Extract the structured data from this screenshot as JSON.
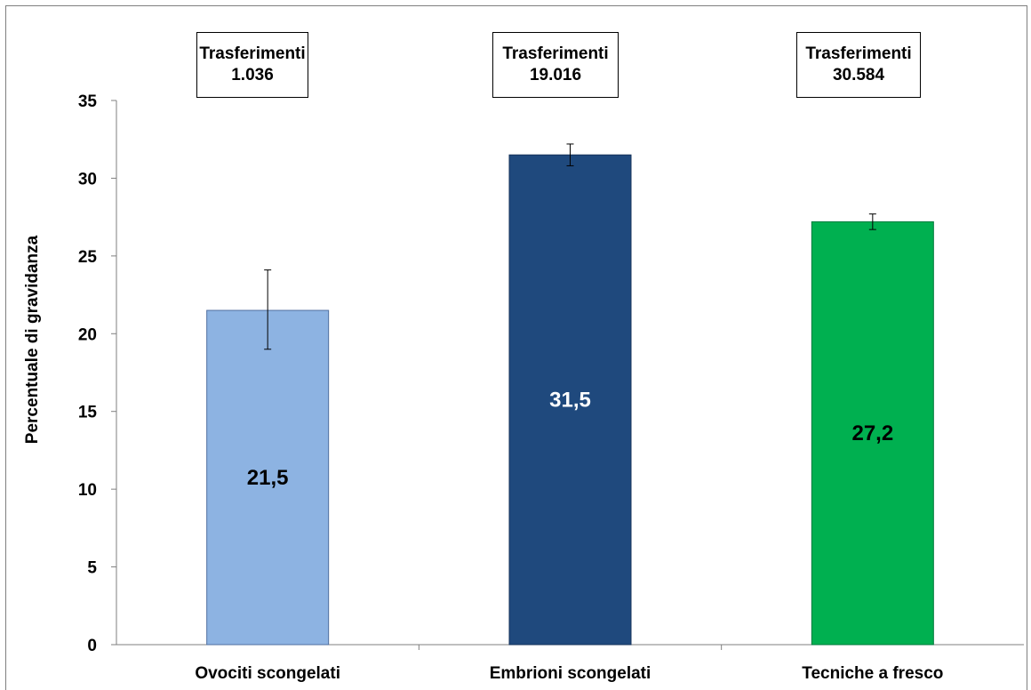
{
  "chart_data": {
    "type": "bar",
    "categories": [
      "Ovociti scongelati",
      "Embrioni scongelati",
      "Tecniche a fresco"
    ],
    "values": [
      21.5,
      31.5,
      27.2
    ],
    "value_labels": [
      "21,5",
      "31,5",
      "27,2"
    ],
    "error_low": [
      19.0,
      30.8,
      26.7
    ],
    "error_high": [
      24.1,
      32.2,
      27.7
    ],
    "colors": [
      "#8db3e2",
      "#1f497d",
      "#00b050"
    ],
    "label_colors": [
      "#000000",
      "#ffffff",
      "#000000"
    ],
    "ylabel": "Percentuale di gravidanza",
    "ylim": [
      0,
      35
    ],
    "yticks": [
      "0",
      "5",
      "10",
      "15",
      "20",
      "25",
      "30",
      "35"
    ],
    "grid": false,
    "annotations": [
      {
        "line1": "Trasferimenti",
        "line2": "1.036"
      },
      {
        "line1": "Trasferimenti",
        "line2": "19.016"
      },
      {
        "line1": "Trasferimenti",
        "line2": "30.584"
      }
    ]
  }
}
